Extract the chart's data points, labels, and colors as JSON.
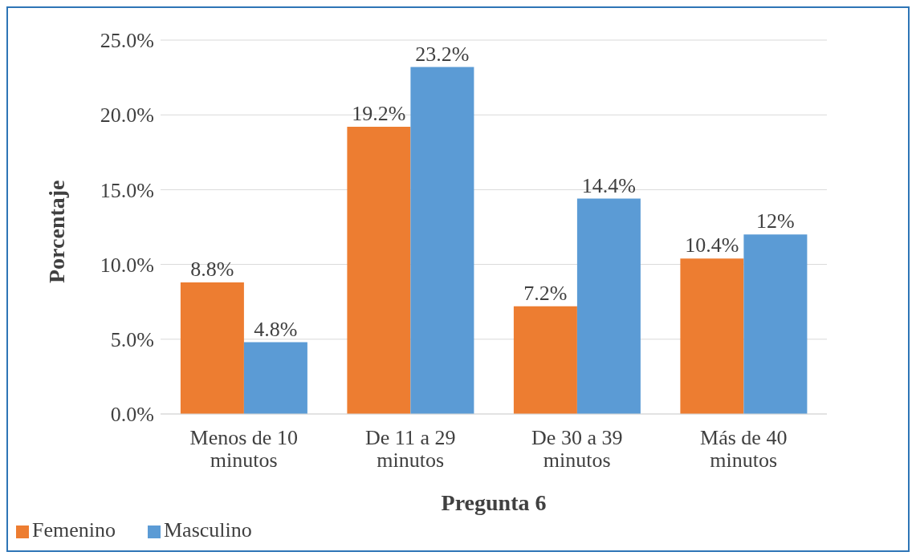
{
  "chart_data": {
    "type": "bar",
    "xlabel": "Pregunta 6",
    "ylabel": "Porcentaje",
    "categories": [
      "Menos de 10 minutos",
      "De 11 a 29 minutos",
      "De 30 a 39 minutos",
      "Más de 40 minutos"
    ],
    "series": [
      {
        "name": "Femenino",
        "color": "#ed7d31",
        "values": [
          8.8,
          19.2,
          7.2,
          10.4
        ],
        "value_labels": [
          "8.8%",
          "19.2%",
          "7.2%",
          "10.4%"
        ]
      },
      {
        "name": "Masculino",
        "color": "#5b9bd5",
        "values": [
          4.8,
          23.2,
          14.4,
          12
        ],
        "value_labels": [
          "4.8%",
          "23.2%",
          "14.4%",
          "12%"
        ]
      }
    ],
    "ylim": [
      0,
      25
    ],
    "yticks": [
      {
        "value": 0,
        "label": "0.0%"
      },
      {
        "value": 5,
        "label": "5.0%"
      },
      {
        "value": 10,
        "label": "10.0%"
      },
      {
        "value": 15,
        "label": "15.0%"
      },
      {
        "value": 20,
        "label": "20.0%"
      },
      {
        "value": 25,
        "label": "25.0%"
      }
    ],
    "grid": "y",
    "legend": "bottom left"
  }
}
